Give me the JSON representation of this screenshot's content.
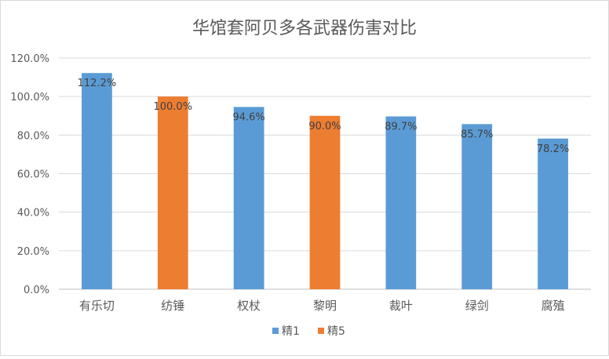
{
  "chart_data": {
    "type": "bar",
    "title": "华馆套阿贝多各武器伤害对比",
    "xlabel": "",
    "ylabel": "",
    "ylim": [
      0,
      120
    ],
    "yticks": [
      "0.0%",
      "20.0%",
      "40.0%",
      "60.0%",
      "80.0%",
      "100.0%",
      "120.0%"
    ],
    "categories": [
      "有乐切",
      "纺锤",
      "权杖",
      "黎明",
      "裁叶",
      "绿剑",
      "腐殖"
    ],
    "values": [
      112.2,
      100.0,
      94.6,
      90.0,
      89.7,
      85.7,
      78.2
    ],
    "value_labels": [
      "112.2%",
      "100.0%",
      "94.6%",
      "90.0%",
      "89.7%",
      "85.7%",
      "78.2%"
    ],
    "bar_series": [
      "精1",
      "精5",
      "精1",
      "精5",
      "精1",
      "精1",
      "精1"
    ],
    "series": [
      {
        "name": "精1",
        "color": "#5b9bd5"
      },
      {
        "name": "精5",
        "color": "#ed7d31"
      }
    ],
    "grid": true,
    "legend": "bottom-center"
  }
}
